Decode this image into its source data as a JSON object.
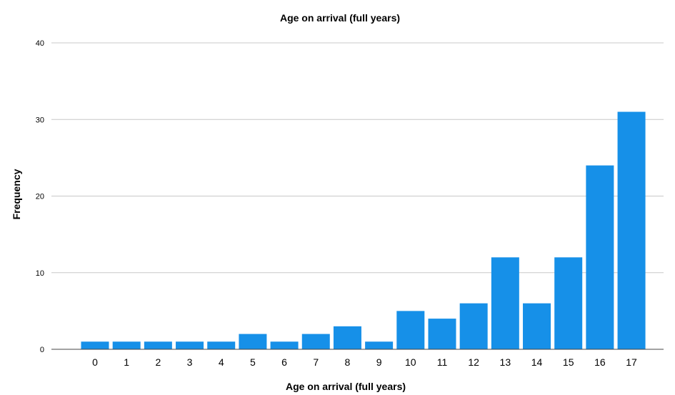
{
  "chart_data": {
    "type": "bar",
    "title": "Age on arrival (full years)",
    "xlabel": "Age on arrival (full years)",
    "ylabel": "Frequency",
    "categories": [
      "0",
      "1",
      "2",
      "3",
      "4",
      "5",
      "6",
      "7",
      "8",
      "9",
      "10",
      "11",
      "12",
      "13",
      "14",
      "15",
      "16",
      "17"
    ],
    "values": [
      1,
      1,
      1,
      1,
      1,
      2,
      1,
      2,
      3,
      1,
      5,
      4,
      6,
      12,
      6,
      12,
      24,
      31
    ],
    "ylim": [
      0,
      40
    ],
    "yticks": [
      "0",
      "10",
      "20",
      "30",
      "40"
    ],
    "grid": true,
    "bar_color": "#1690e8"
  }
}
